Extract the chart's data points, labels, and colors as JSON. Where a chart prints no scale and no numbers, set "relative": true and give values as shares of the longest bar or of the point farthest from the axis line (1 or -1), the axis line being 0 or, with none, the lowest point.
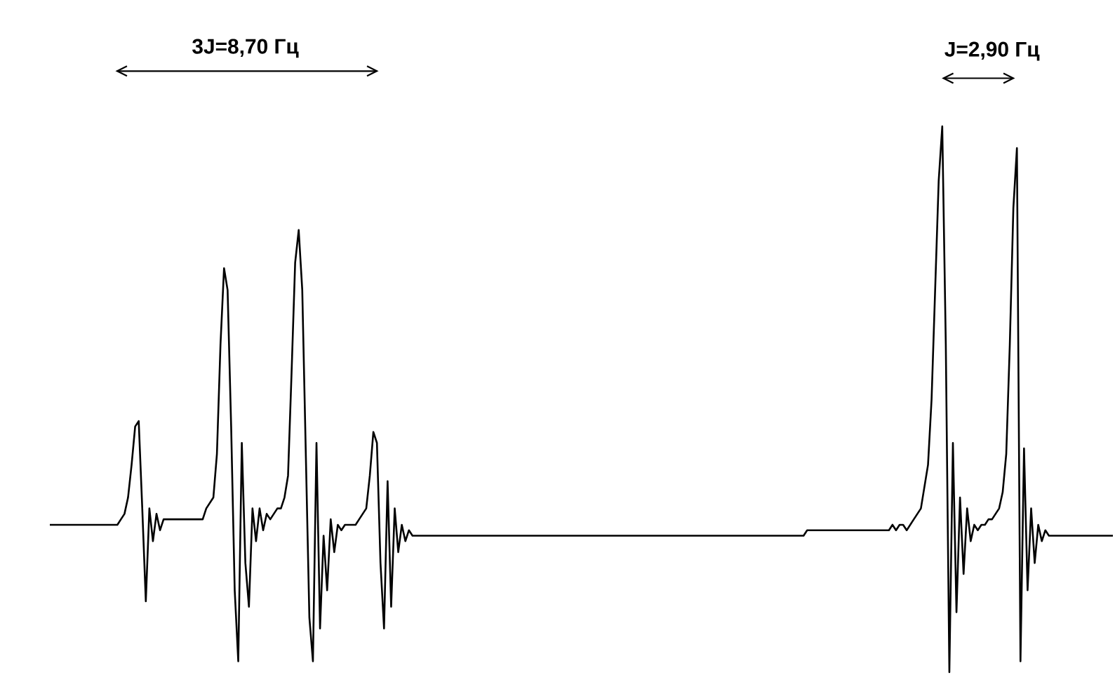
{
  "chart_data": {
    "type": "line",
    "relative": true,
    "marker": "none",
    "line_style": "solid",
    "annotations": [
      "3J=8,70 Гц",
      "J=2,90 Гц"
    ],
    "categories": [
      null,
      null,
      null,
      null,
      null,
      null,
      null,
      null,
      null,
      null,
      null,
      null,
      null,
      null,
      null,
      null,
      null,
      null,
      null,
      null,
      null,
      null,
      null,
      null,
      null,
      null,
      null,
      null,
      null,
      null,
      null,
      null,
      null,
      null,
      null,
      null,
      null,
      null,
      null,
      null,
      null,
      null,
      null,
      null,
      null,
      null,
      null,
      null,
      null,
      null,
      null,
      null,
      null,
      null,
      null,
      null,
      null,
      null,
      null,
      null,
      null,
      null,
      null,
      null,
      null,
      null,
      null,
      null,
      null,
      null,
      null,
      null,
      null,
      null,
      null,
      null,
      null,
      null,
      null,
      null,
      null,
      null,
      null,
      null,
      null,
      null,
      null,
      null,
      null,
      null,
      null,
      null,
      null,
      null,
      null,
      null,
      null,
      null,
      null,
      null,
      null,
      null,
      null,
      null,
      null,
      null,
      null,
      null,
      null,
      null,
      null,
      null,
      null,
      null,
      null,
      null,
      null,
      null,
      null,
      null,
      null,
      null,
      null,
      null,
      null,
      null,
      null,
      null,
      null,
      null,
      null,
      null,
      null,
      null,
      null,
      null,
      null,
      null,
      null,
      null,
      null,
      null,
      null,
      null,
      null,
      null,
      null,
      null,
      null,
      null,
      null,
      null,
      null,
      null,
      null,
      null,
      null,
      null,
      null,
      null,
      null,
      null,
      null,
      null,
      null,
      null,
      null,
      null,
      null,
      null,
      null,
      null,
      null,
      null,
      null,
      null,
      null,
      null,
      null,
      null,
      null,
      null,
      null,
      null,
      null,
      null,
      null,
      null,
      null,
      null,
      null,
      null,
      null,
      null,
      null,
      null,
      null,
      null,
      null,
      null,
      null,
      null,
      null,
      null,
      null,
      null,
      null,
      null,
      null,
      null,
      null,
      null,
      null,
      null,
      null,
      null,
      null,
      null,
      null,
      null,
      null,
      null,
      null,
      null,
      null,
      null,
      null,
      null,
      null,
      null,
      null,
      null,
      null,
      null,
      null,
      null,
      null,
      null,
      null,
      null,
      null,
      null,
      null,
      null,
      null,
      null,
      null,
      null,
      null,
      null,
      null,
      null,
      null,
      null,
      null,
      null,
      null,
      null,
      null,
      null,
      null,
      null,
      null,
      null,
      null,
      null,
      null,
      null,
      null,
      null,
      null,
      null,
      null,
      null,
      null,
      null,
      null,
      null,
      null,
      null,
      null,
      null,
      null,
      null,
      null,
      null,
      null,
      null,
      null,
      null,
      null,
      null,
      null,
      null,
      null,
      null,
      null,
      null,
      null,
      null
    ],
    "series": [
      {
        "color": "#000000",
        "values": [
          0.27,
          0.27,
          0.27,
          0.27,
          0.27,
          0.27,
          0.27,
          0.27,
          0.27,
          0.27,
          0.27,
          0.27,
          0.27,
          0.27,
          0.27,
          0.27,
          0.27,
          0.27,
          0.27,
          0.27,
          0.28,
          0.29,
          0.32,
          0.38,
          0.45,
          0.46,
          0.3,
          0.13,
          0.3,
          0.24,
          0.29,
          0.26,
          0.28,
          0.28,
          0.28,
          0.28,
          0.28,
          0.28,
          0.28,
          0.28,
          0.28,
          0.28,
          0.28,
          0.28,
          0.3,
          0.31,
          0.32,
          0.4,
          0.6,
          0.74,
          0.7,
          0.45,
          0.15,
          0.02,
          0.42,
          0.2,
          0.12,
          0.3,
          0.24,
          0.3,
          0.26,
          0.29,
          0.28,
          0.29,
          0.3,
          0.3,
          0.32,
          0.36,
          0.55,
          0.75,
          0.81,
          0.7,
          0.4,
          0.1,
          0.02,
          0.42,
          0.08,
          0.25,
          0.15,
          0.28,
          0.22,
          0.27,
          0.26,
          0.27,
          0.27,
          0.27,
          0.27,
          0.28,
          0.29,
          0.3,
          0.36,
          0.44,
          0.42,
          0.2,
          0.08,
          0.35,
          0.12,
          0.3,
          0.22,
          0.27,
          0.24,
          0.26,
          0.25,
          0.25,
          0.25,
          0.25,
          0.25,
          0.25,
          0.25,
          0.25,
          0.25,
          0.25,
          0.25,
          0.25,
          0.25,
          0.25,
          0.25,
          0.25,
          0.25,
          0.25,
          0.25,
          0.25,
          0.25,
          0.25,
          0.25,
          0.25,
          0.25,
          0.25,
          0.25,
          0.25,
          0.25,
          0.25,
          0.25,
          0.25,
          0.25,
          0.25,
          0.25,
          0.25,
          0.25,
          0.25,
          0.25,
          0.25,
          0.25,
          0.25,
          0.25,
          0.25,
          0.25,
          0.25,
          0.25,
          0.25,
          0.25,
          0.25,
          0.25,
          0.25,
          0.25,
          0.25,
          0.25,
          0.25,
          0.25,
          0.25,
          0.25,
          0.25,
          0.25,
          0.25,
          0.25,
          0.25,
          0.25,
          0.25,
          0.25,
          0.25,
          0.25,
          0.25,
          0.25,
          0.25,
          0.25,
          0.25,
          0.25,
          0.25,
          0.25,
          0.25,
          0.25,
          0.25,
          0.25,
          0.25,
          0.25,
          0.25,
          0.25,
          0.25,
          0.25,
          0.25,
          0.25,
          0.25,
          0.25,
          0.25,
          0.25,
          0.25,
          0.25,
          0.25,
          0.25,
          0.25,
          0.25,
          0.25,
          0.25,
          0.25,
          0.25,
          0.25,
          0.25,
          0.25,
          0.25,
          0.25,
          0.25,
          0.25,
          0.25,
          0.26,
          0.26,
          0.26,
          0.26,
          0.26,
          0.26,
          0.26,
          0.26,
          0.26,
          0.26,
          0.26,
          0.26,
          0.26,
          0.26,
          0.26,
          0.26,
          0.26,
          0.26,
          0.26,
          0.26,
          0.26,
          0.26,
          0.26,
          0.26,
          0.27,
          0.26,
          0.27,
          0.27,
          0.26,
          0.27,
          0.28,
          0.29,
          0.3,
          0.34,
          0.38,
          0.5,
          0.7,
          0.9,
          1.0,
          0.6,
          0.0,
          0.42,
          0.11,
          0.32,
          0.18,
          0.3,
          0.24,
          0.27,
          0.26,
          0.27,
          0.27,
          0.28,
          0.28,
          0.29,
          0.3,
          0.33,
          0.4,
          0.6,
          0.85,
          0.96,
          0.02,
          0.41,
          0.15,
          0.3,
          0.2,
          0.27,
          0.24,
          0.26,
          0.25,
          0.25,
          0.25,
          0.25,
          0.25,
          0.25,
          0.25,
          0.25,
          0.25,
          0.25,
          0.25,
          0.25,
          0.25,
          0.25,
          0.25,
          0.25,
          0.25,
          0.25,
          0.25
        ]
      }
    ]
  }
}
